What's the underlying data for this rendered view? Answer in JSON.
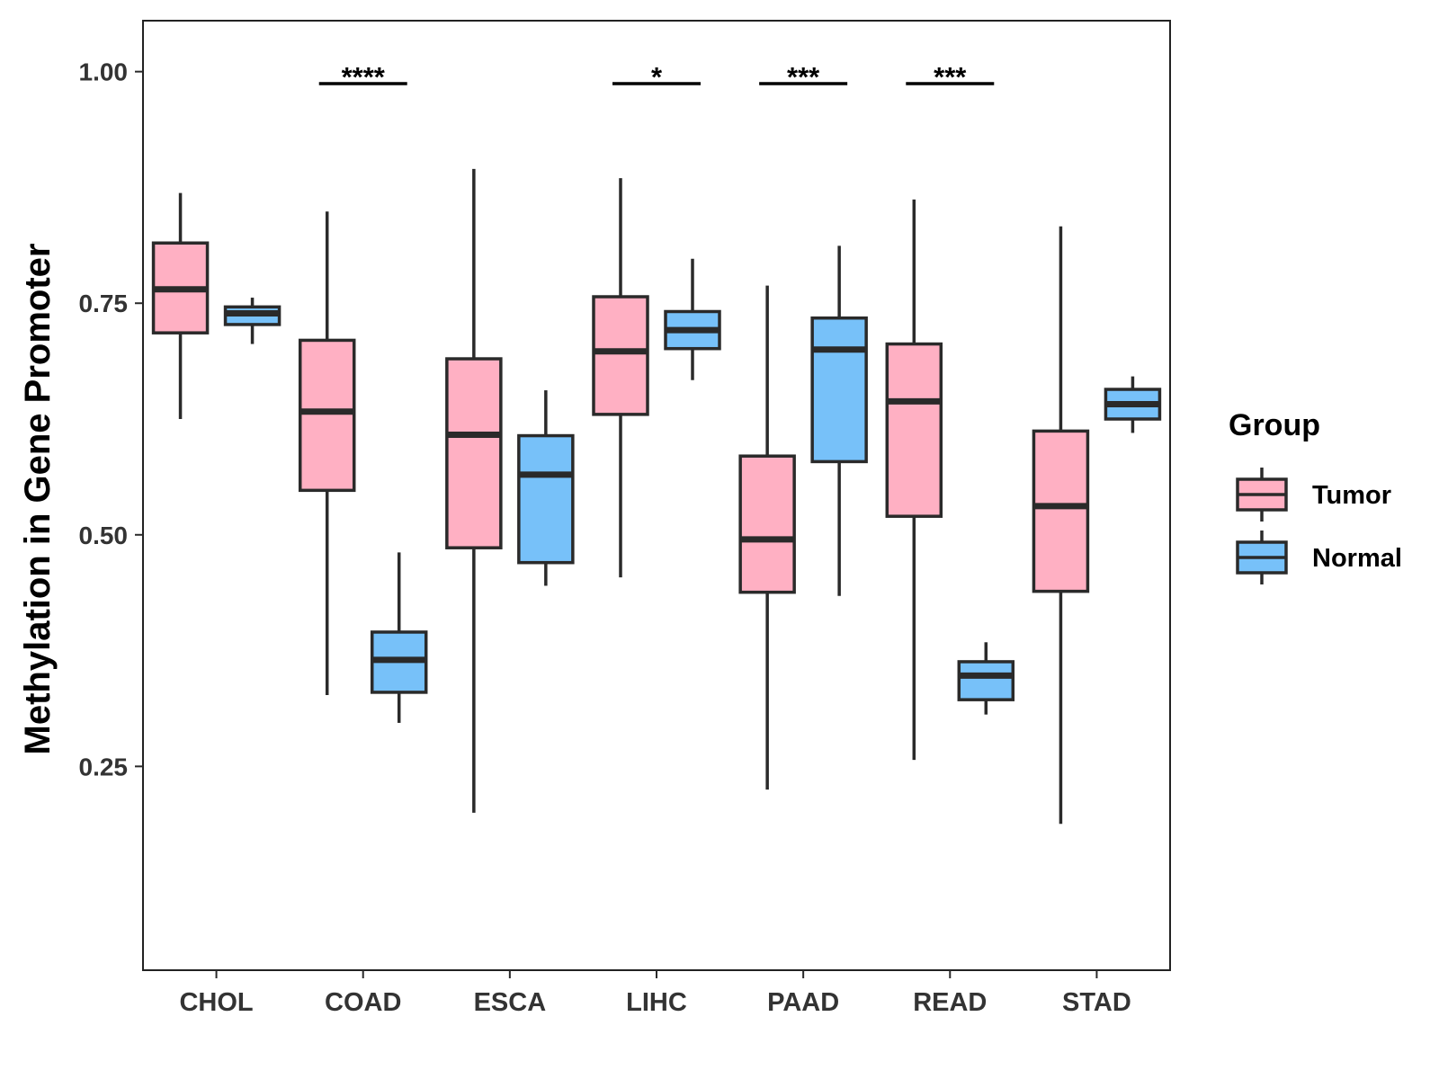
{
  "chart_data": {
    "type": "boxplot",
    "title": "",
    "xlabel": "",
    "ylabel": "Methylation in Gene Promoter",
    "ylim": [
      0.03,
      1.055
    ],
    "yticks": [
      0.25,
      0.5,
      0.75,
      1.0
    ],
    "ytick_labels": [
      "0.25",
      "0.50",
      "0.75",
      "1.00"
    ],
    "categories": [
      "CHOL",
      "COAD",
      "ESCA",
      "LIHC",
      "PAAD",
      "READ",
      "STAD"
    ],
    "grid": false,
    "legend": {
      "title": "Group",
      "position": "right",
      "entries": [
        "Tumor",
        "Normal"
      ]
    },
    "series": [
      {
        "name": "Tumor",
        "color": "#FFB0C3",
        "boxes": [
          {
            "min": 0.625,
            "q1": 0.718,
            "median": 0.765,
            "q3": 0.815,
            "max": 0.869
          },
          {
            "min": 0.327,
            "q1": 0.548,
            "median": 0.633,
            "q3": 0.71,
            "max": 0.849
          },
          {
            "min": 0.2,
            "q1": 0.486,
            "median": 0.608,
            "q3": 0.69,
            "max": 0.895
          },
          {
            "min": 0.454,
            "q1": 0.63,
            "median": 0.698,
            "q3": 0.757,
            "max": 0.885
          },
          {
            "min": 0.225,
            "q1": 0.438,
            "median": 0.495,
            "q3": 0.585,
            "max": 0.769
          },
          {
            "min": 0.257,
            "q1": 0.52,
            "median": 0.644,
            "q3": 0.706,
            "max": 0.862
          },
          {
            "min": 0.188,
            "q1": 0.439,
            "median": 0.531,
            "q3": 0.612,
            "max": 0.833
          }
        ]
      },
      {
        "name": "Normal",
        "color": "#77C1F9",
        "boxes": [
          {
            "min": 0.706,
            "q1": 0.727,
            "median": 0.739,
            "q3": 0.746,
            "max": 0.756
          },
          {
            "min": 0.297,
            "q1": 0.33,
            "median": 0.365,
            "q3": 0.395,
            "max": 0.481
          },
          {
            "min": 0.445,
            "q1": 0.47,
            "median": 0.565,
            "q3": 0.607,
            "max": 0.656
          },
          {
            "min": 0.667,
            "q1": 0.701,
            "median": 0.721,
            "q3": 0.741,
            "max": 0.798
          },
          {
            "min": 0.434,
            "q1": 0.579,
            "median": 0.7,
            "q3": 0.734,
            "max": 0.812
          },
          {
            "min": 0.306,
            "q1": 0.322,
            "median": 0.348,
            "q3": 0.363,
            "max": 0.384
          },
          {
            "min": 0.61,
            "q1": 0.625,
            "median": 0.641,
            "q3": 0.657,
            "max": 0.671
          }
        ]
      }
    ],
    "annotations": [
      {
        "category": "COAD",
        "label": "****"
      },
      {
        "category": "LIHC",
        "label": "*"
      },
      {
        "category": "PAAD",
        "label": "***"
      },
      {
        "category": "READ",
        "label": "***"
      }
    ]
  }
}
